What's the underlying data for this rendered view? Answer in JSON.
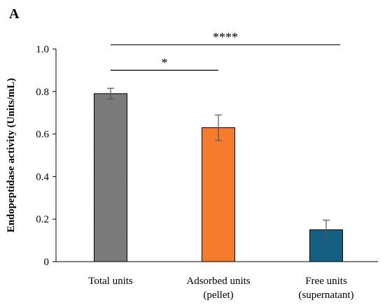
{
  "panel_label": "A",
  "chart_data": {
    "type": "bar",
    "title": "",
    "xlabel": "",
    "ylabel": "Endopeptidase activity (Units/mL)",
    "ylim": [
      0,
      1.0
    ],
    "yticks": [
      "0",
      "0.2",
      "0.4",
      "0.6",
      "0.8",
      "1.0"
    ],
    "categories": [
      [
        "Total units"
      ],
      [
        "Adsorbed units",
        "(pellet)"
      ],
      [
        "Free units",
        "(supernatant)"
      ]
    ],
    "values": [
      0.79,
      0.63,
      0.15
    ],
    "errors": [
      0.025,
      0.06,
      0.045
    ],
    "colors": [
      "#7f7f7f",
      "#f57b2c",
      "#155f82"
    ],
    "bar_pattern_first": "diagonal-hatch",
    "grid": false,
    "significance": [
      {
        "from": 0,
        "to": 1,
        "label": "*",
        "y": 0.9
      },
      {
        "from": 0,
        "to": 2,
        "label": "****",
        "y": 1.02
      }
    ]
  }
}
